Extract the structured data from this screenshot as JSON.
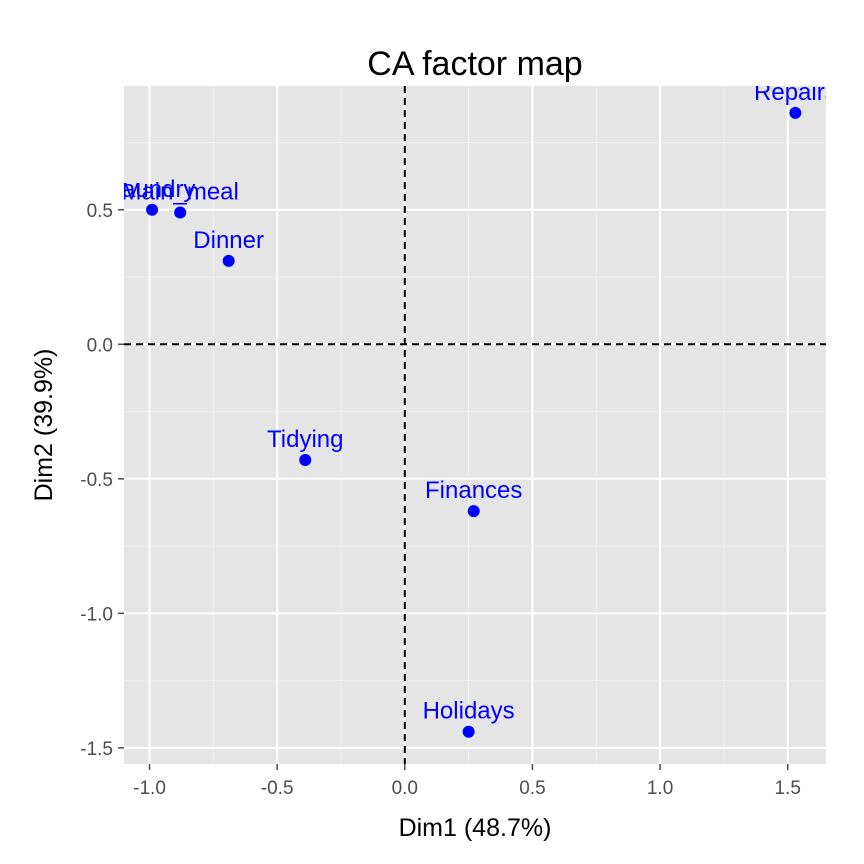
{
  "chart_data": {
    "type": "scatter",
    "title": "CA factor map",
    "xlabel": "Dim1 (48.7%)",
    "ylabel": "Dim2 (39.9%)",
    "xlim": [
      -1.1,
      1.65
    ],
    "ylim": [
      -1.56,
      0.96
    ],
    "x_ticks": [
      -1.0,
      -0.5,
      0.0,
      0.5,
      1.0,
      1.5
    ],
    "x_tick_labels": [
      "-1.0",
      "-0.5",
      "0.0",
      "0.5",
      "1.0",
      "1.5"
    ],
    "y_ticks": [
      -1.5,
      -1.0,
      -0.5,
      0.0,
      0.5
    ],
    "y_tick_labels": [
      "-1.5",
      "-1.0",
      "-0.5",
      "0.0",
      "0.5"
    ],
    "grid": true,
    "reference_lines": {
      "x": 0,
      "y": 0,
      "style": "dashed"
    },
    "point_color": "#0000ff",
    "panel_background": "#e5e5e5",
    "points": [
      {
        "label": "Laundry",
        "x": -0.99,
        "y": 0.5
      },
      {
        "label": "Main_meal",
        "x": -0.88,
        "y": 0.49
      },
      {
        "label": "Dinner",
        "x": -0.69,
        "y": 0.31
      },
      {
        "label": "Tidying",
        "x": -0.39,
        "y": -0.43
      },
      {
        "label": "Finances",
        "x": 0.27,
        "y": -0.62
      },
      {
        "label": "Holidays",
        "x": 0.25,
        "y": -1.44
      },
      {
        "label": "Repairs",
        "x": 1.53,
        "y": 0.86
      }
    ]
  }
}
